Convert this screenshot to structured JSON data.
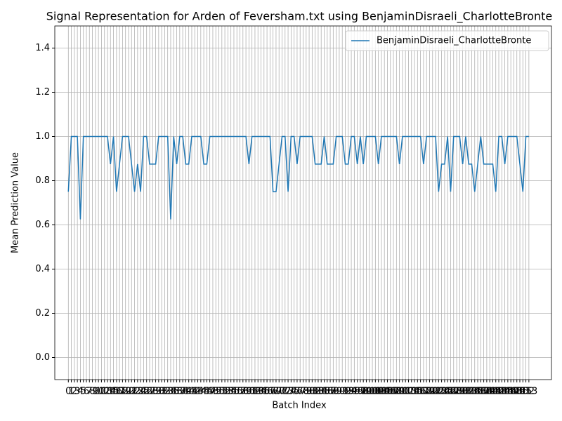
{
  "chart_data": {
    "type": "line",
    "title": "Signal Representation for Arden of Feversham.txt using BenjaminDisraeli_CharlotteBronte",
    "x_label": "Batch Index",
    "y_label": "Mean Prediction Value",
    "x": [
      0,
      1,
      2,
      3,
      4,
      5,
      6,
      7,
      8,
      9,
      10,
      11,
      12,
      13,
      14,
      15,
      16,
      17,
      18,
      19,
      20,
      21,
      22,
      23,
      24,
      25,
      26,
      27,
      28,
      29,
      30,
      31,
      32,
      33,
      34,
      35,
      36,
      37,
      38,
      39,
      40,
      41,
      42,
      43,
      44,
      45,
      46,
      47,
      48,
      49,
      50,
      51,
      52,
      53,
      54,
      55,
      56,
      57,
      58,
      59,
      60,
      61,
      62,
      63,
      64,
      65,
      66,
      67,
      68,
      69,
      70,
      71,
      72,
      73,
      74,
      75,
      76,
      77,
      78,
      79,
      80,
      81,
      82,
      83,
      84,
      85,
      86,
      87,
      88,
      89,
      90,
      91,
      92,
      93,
      94,
      95,
      96,
      97,
      98,
      99,
      100,
      101,
      102,
      103,
      104,
      105,
      106,
      107,
      108,
      109,
      110,
      111,
      112,
      113,
      114,
      115,
      116,
      117,
      118,
      119,
      120,
      121,
      122,
      123,
      124,
      125,
      126,
      127,
      128,
      129,
      130,
      131,
      132,
      133,
      134,
      135,
      136,
      137,
      138,
      139,
      140,
      141,
      142,
      143,
      144,
      145,
      146,
      147,
      148,
      149,
      150,
      151,
      152,
      153
    ],
    "series": [
      {
        "name": "BenjaminDisraeli_CharlotteBronte",
        "color": "#1f77b4",
        "values": [
          0.75,
          1,
          1,
          1,
          0.625,
          1,
          1,
          1,
          1,
          1,
          1,
          1,
          1,
          1,
          0.875,
          1,
          0.75,
          0.875,
          1,
          1,
          1,
          0.875,
          0.75,
          0.875,
          0.75,
          1,
          1,
          0.875,
          0.875,
          0.875,
          1,
          1,
          1,
          1,
          0.625,
          1,
          0.875,
          1,
          1,
          0.875,
          0.875,
          1,
          1,
          1,
          1,
          0.875,
          0.875,
          1,
          1,
          1,
          1,
          1,
          1,
          1,
          1,
          1,
          1,
          1,
          1,
          1,
          0.875,
          1,
          1,
          1,
          1,
          1,
          1,
          1,
          0.75,
          0.75,
          0.875,
          1,
          1,
          0.75,
          1,
          1,
          0.875,
          1,
          1,
          1,
          1,
          1,
          0.875,
          0.875,
          0.875,
          1,
          0.875,
          0.875,
          0.875,
          1,
          1,
          1,
          0.875,
          0.875,
          1,
          1,
          0.875,
          1,
          0.875,
          1,
          1,
          1,
          1,
          0.875,
          1,
          1,
          1,
          1,
          1,
          1,
          0.875,
          1,
          1,
          1,
          1,
          1,
          1,
          1,
          0.875,
          1,
          1,
          1,
          1,
          0.75,
          0.875,
          0.875,
          1,
          0.75,
          1,
          1,
          1,
          0.875,
          1,
          0.875,
          0.875,
          0.75,
          0.875,
          1,
          0.875,
          0.875,
          0.875,
          0.875,
          0.75,
          1,
          1,
          0.875,
          1,
          1,
          1,
          1,
          0.875,
          0.75,
          1,
          1
        ]
      }
    ],
    "xlim": [
      -4.5,
      160.5
    ],
    "xticks": [
      0,
      1,
      2,
      3,
      4,
      5,
      6,
      7,
      8,
      9,
      10,
      11,
      12,
      13,
      14,
      15,
      16,
      17,
      18,
      19,
      20,
      21,
      22,
      23,
      24,
      25,
      26,
      27,
      28,
      29,
      30,
      31,
      32,
      33,
      34,
      35,
      36,
      37,
      38,
      39,
      40,
      41,
      42,
      43,
      44,
      45,
      46,
      47,
      48,
      49,
      50,
      51,
      52,
      53,
      54,
      55,
      56,
      57,
      58,
      59,
      60,
      61,
      62,
      63,
      64,
      65,
      66,
      67,
      68,
      69,
      70,
      71,
      72,
      73,
      74,
      75,
      76,
      77,
      78,
      79,
      80,
      81,
      82,
      83,
      84,
      85,
      86,
      87,
      88,
      89,
      90,
      91,
      92,
      93,
      94,
      95,
      96,
      97,
      98,
      99,
      100,
      101,
      102,
      103,
      104,
      105,
      106,
      107,
      108,
      109,
      110,
      111,
      112,
      113,
      114,
      115,
      116,
      117,
      118,
      119,
      120,
      121,
      122,
      123,
      124,
      125,
      126,
      127,
      128,
      129,
      130,
      131,
      132,
      133,
      134,
      135,
      136,
      137,
      138,
      139,
      140,
      141,
      142,
      143,
      144,
      145,
      146,
      147,
      148,
      149,
      150,
      151,
      152,
      153
    ],
    "ylim": [
      -0.1,
      1.5
    ],
    "yticks": [
      {
        "value": 0,
        "label": "0.0"
      },
      {
        "value": 0.2,
        "label": "0.2"
      },
      {
        "value": 0.4,
        "label": "0.4"
      },
      {
        "value": 0.6,
        "label": "0.6"
      },
      {
        "value": 0.8,
        "label": "0.8"
      },
      {
        "value": 1,
        "label": "1.0"
      },
      {
        "value": 1.2,
        "label": "1.2"
      },
      {
        "value": 1.4,
        "label": "1.4"
      }
    ],
    "grid": true,
    "legend": "upper right"
  }
}
